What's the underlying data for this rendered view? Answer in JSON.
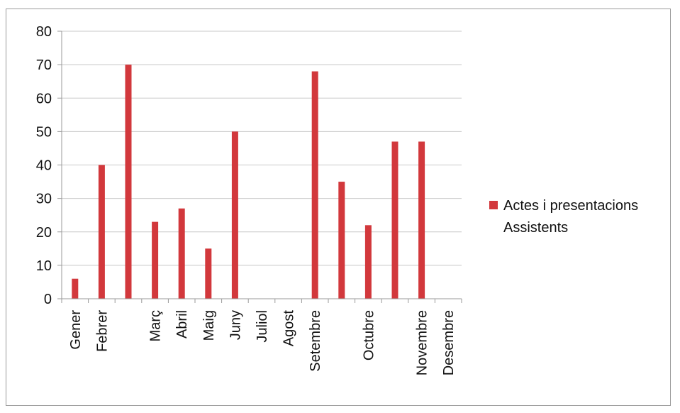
{
  "chart_data": {
    "type": "bar",
    "categories": [
      "Gener",
      "Febrer",
      "",
      "Març",
      "Abril",
      "Maig",
      "Juny",
      "Juliol",
      "Agost",
      "Setembre",
      "",
      "Octubre",
      "",
      "Novembre",
      "Desembre"
    ],
    "series": [
      {
        "name": "Actes i presentacions Assistents",
        "values": [
          6,
          40,
          70,
          23,
          27,
          15,
          50,
          0,
          0,
          68,
          35,
          22,
          47,
          47,
          0
        ]
      }
    ],
    "ylim": [
      0,
      80
    ],
    "yticks": [
      0,
      10,
      20,
      30,
      40,
      50,
      60,
      70,
      80
    ],
    "grid": true,
    "legend_position": "right",
    "colors": {
      "bar": "#d2383c",
      "grid": "#c8c8c8",
      "axis": "#9a9a9a"
    }
  },
  "legend": {
    "line1": "Actes i presentacions",
    "line2": "Assistents"
  }
}
